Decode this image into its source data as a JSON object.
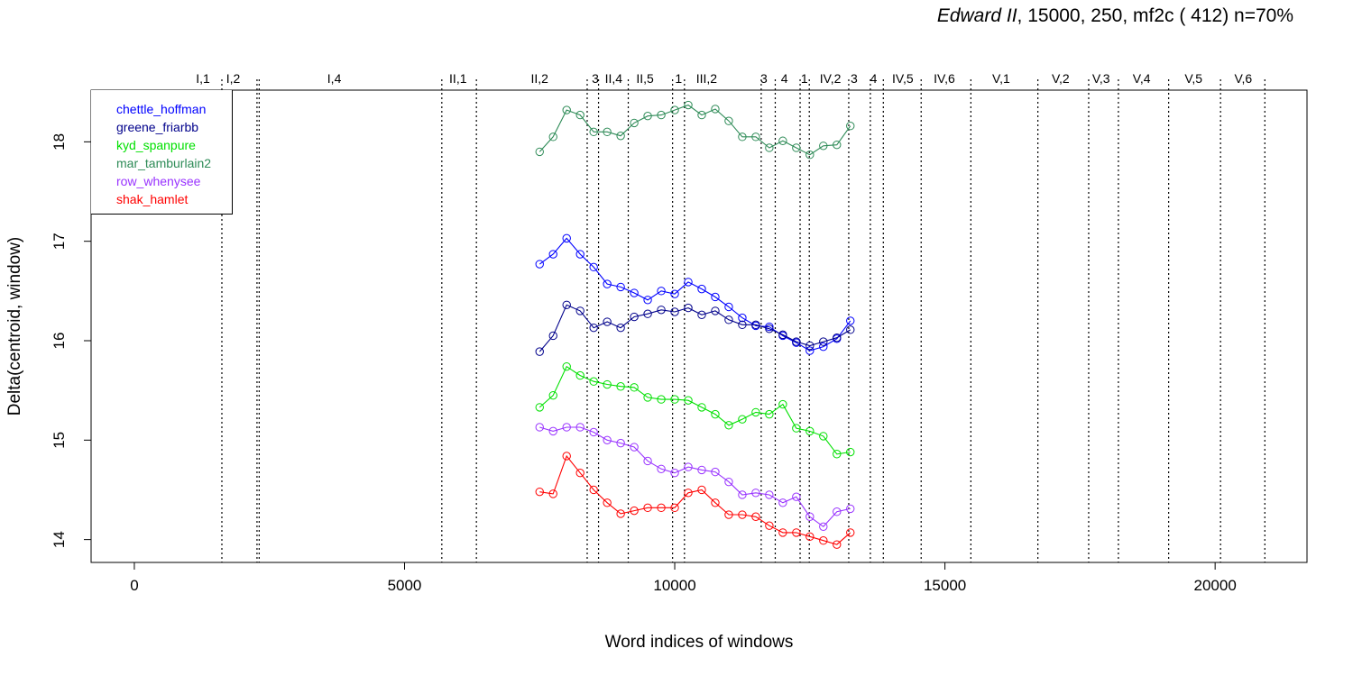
{
  "title": {
    "play": "Edward II",
    "params": ", 15000, 250, mf2c ( 412)   n=70%"
  },
  "chart_data": {
    "type": "line",
    "xlabel": "Word indices of windows",
    "ylabel": "Delta(centroid, window)",
    "xlim": [
      -800,
      21700
    ],
    "ylim": [
      13.77,
      18.52
    ],
    "xticks": [
      0,
      5000,
      10000,
      15000,
      20000
    ],
    "yticks": [
      14,
      15,
      16,
      17,
      18
    ],
    "legend_position": "top-left",
    "scene_boundaries": [
      1620,
      2270,
      2310,
      5690,
      6330,
      8380,
      8590,
      9140,
      9960,
      10180,
      11600,
      11860,
      12320,
      12490,
      13220,
      13620,
      13860,
      14560,
      15480,
      16720,
      17660,
      18210,
      19140,
      20100,
      20920
    ],
    "scene_labels": [
      {
        "label": "I,1",
        "x": 1270
      },
      {
        "label": "I,2",
        "x": 1830
      },
      {
        "label": "I,4",
        "x": 3700
      },
      {
        "label": "II,1",
        "x": 5990
      },
      {
        "label": "II,2",
        "x": 7500
      },
      {
        "label": "3",
        "x": 8530
      },
      {
        "label": "II,4",
        "x": 8870
      },
      {
        "label": "II,5",
        "x": 9450
      },
      {
        "label": "1",
        "x": 10070
      },
      {
        "label": "III,2",
        "x": 10590
      },
      {
        "label": "3",
        "x": 11650
      },
      {
        "label": "4",
        "x": 12030
      },
      {
        "label": "1",
        "x": 12400
      },
      {
        "label": "IV,2",
        "x": 12880
      },
      {
        "label": "3",
        "x": 13320
      },
      {
        "label": "4",
        "x": 13680
      },
      {
        "label": "IV,5",
        "x": 14220
      },
      {
        "label": "IV,6",
        "x": 14990
      },
      {
        "label": "V,1",
        "x": 16040
      },
      {
        "label": "V,2",
        "x": 17140
      },
      {
        "label": "V,3",
        "x": 17890
      },
      {
        "label": "V,4",
        "x": 18640
      },
      {
        "label": "V,5",
        "x": 19600
      },
      {
        "label": "V,6",
        "x": 20520
      }
    ],
    "x": [
      7500,
      7750,
      8000,
      8250,
      8500,
      8750,
      9000,
      9250,
      9500,
      9750,
      10000,
      10250,
      10500,
      10750,
      11000,
      11250,
      11500,
      11750,
      12000,
      12250,
      12500,
      12750,
      13000,
      13250
    ],
    "series": [
      {
        "name": "chettle_hoffman",
        "color": "#0000ff",
        "values": [
          16.77,
          16.87,
          17.03,
          16.87,
          16.74,
          16.57,
          16.54,
          16.48,
          16.41,
          16.5,
          16.47,
          16.59,
          16.52,
          16.44,
          16.34,
          16.23,
          16.15,
          16.14,
          16.05,
          15.98,
          15.9,
          15.94,
          16.02,
          16.2
        ]
      },
      {
        "name": "greene_friarbb",
        "color": "#00008b",
        "values": [
          15.89,
          16.05,
          16.36,
          16.3,
          16.13,
          16.19,
          16.13,
          16.24,
          16.27,
          16.31,
          16.29,
          16.33,
          16.26,
          16.3,
          16.21,
          16.16,
          16.16,
          16.12,
          16.06,
          15.99,
          15.95,
          15.99,
          16.03,
          16.11
        ]
      },
      {
        "name": "kyd_spanpure",
        "color": "#00e000",
        "values": [
          15.33,
          15.45,
          15.74,
          15.65,
          15.59,
          15.56,
          15.54,
          15.53,
          15.43,
          15.41,
          15.41,
          15.4,
          15.33,
          15.26,
          15.15,
          15.21,
          15.28,
          15.26,
          15.36,
          15.12,
          15.09,
          15.04,
          14.86,
          14.88
        ]
      },
      {
        "name": "mar_tamburlain2",
        "color": "#2e8b57",
        "values": [
          17.9,
          18.05,
          18.32,
          18.27,
          18.1,
          18.1,
          18.06,
          18.19,
          18.26,
          18.27,
          18.32,
          18.37,
          18.27,
          18.33,
          18.21,
          18.05,
          18.05,
          17.94,
          18.01,
          17.94,
          17.87,
          17.96,
          17.97,
          18.16
        ]
      },
      {
        "name": "row_whenysee",
        "color": "#9933ff",
        "values": [
          15.13,
          15.09,
          15.13,
          15.13,
          15.08,
          15.0,
          14.97,
          14.93,
          14.79,
          14.71,
          14.67,
          14.73,
          14.7,
          14.68,
          14.58,
          14.45,
          14.47,
          14.45,
          14.37,
          14.43,
          14.23,
          14.13,
          14.28,
          14.31
        ]
      },
      {
        "name": "shak_hamlet",
        "color": "#ff0000",
        "values": [
          14.48,
          14.46,
          14.84,
          14.67,
          14.5,
          14.37,
          14.26,
          14.29,
          14.32,
          14.32,
          14.32,
          14.47,
          14.5,
          14.37,
          14.25,
          14.25,
          14.23,
          14.14,
          14.07,
          14.07,
          14.03,
          13.99,
          13.95,
          14.07
        ]
      }
    ]
  }
}
